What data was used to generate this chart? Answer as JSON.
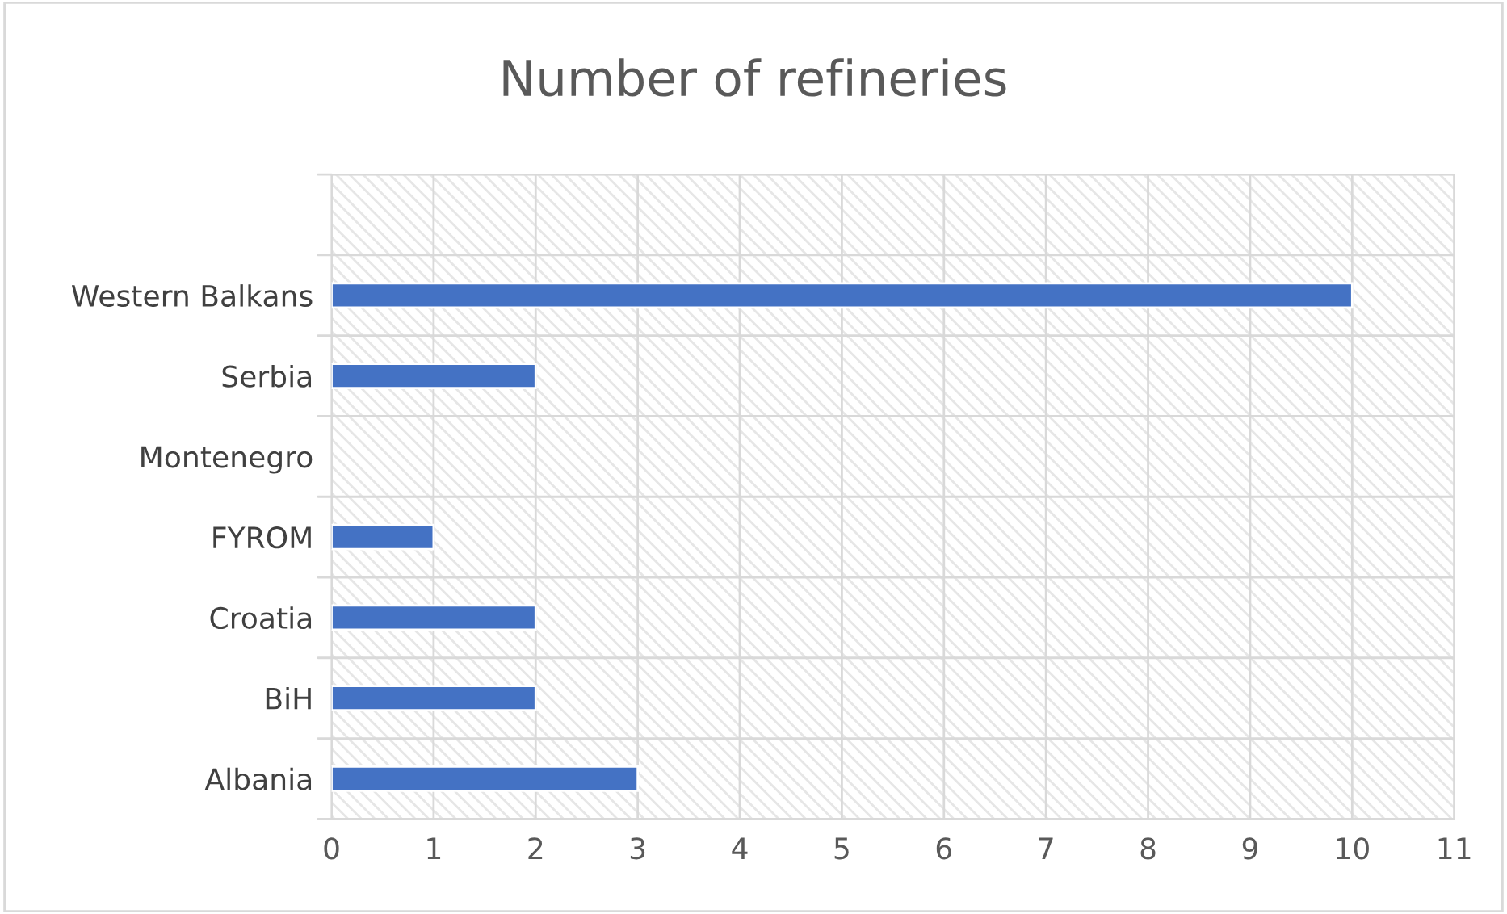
{
  "chart_data": {
    "type": "bar",
    "title": "Number of refineries",
    "orientation": "horizontal",
    "categories": [
      null,
      "Western Balkans",
      "Serbia",
      "Montenegro",
      "FYROM",
      "Croatia",
      "BiH",
      "Albania"
    ],
    "values": [
      null,
      10,
      2,
      0,
      1,
      2,
      2,
      3
    ],
    "color": "#4472c4",
    "xlim": [
      0,
      11
    ],
    "xticks": [
      0,
      1,
      2,
      3,
      4,
      5,
      6,
      7,
      8,
      9,
      10,
      11
    ],
    "grid": true
  }
}
